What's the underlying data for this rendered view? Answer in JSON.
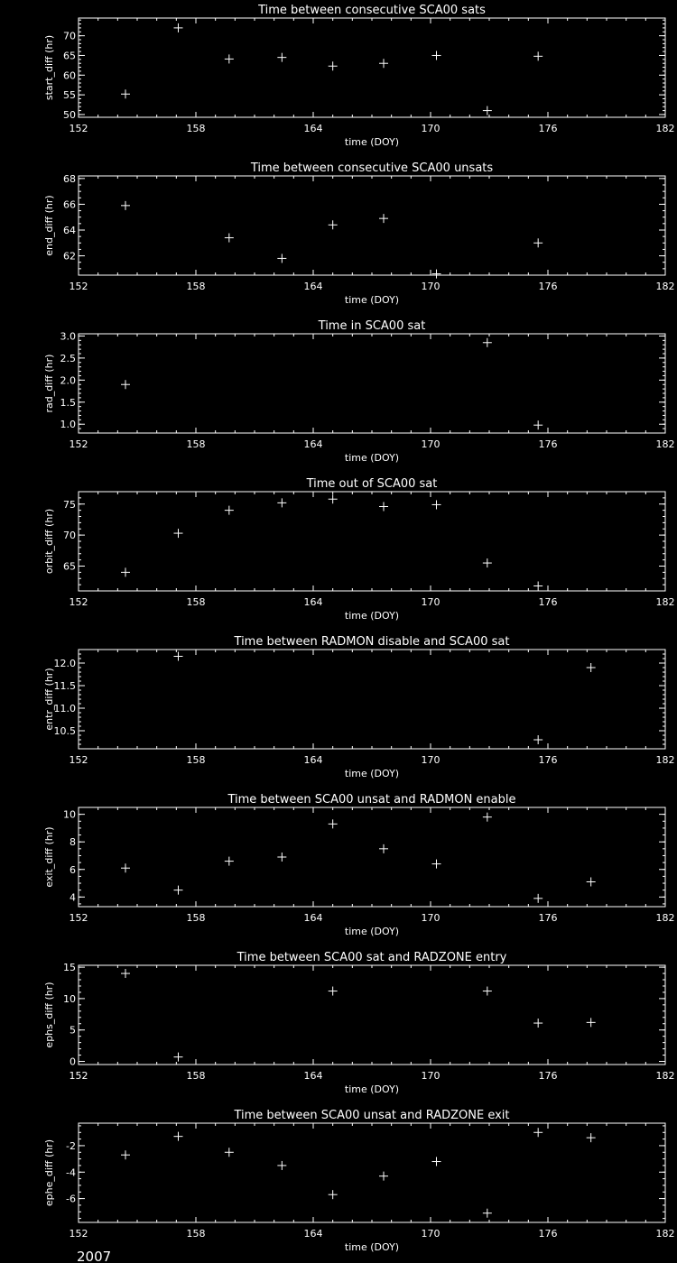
{
  "footer_year": "2007",
  "colors": {
    "background": "#000000",
    "foreground": "#ffffff"
  },
  "chart_data": [
    {
      "type": "scatter",
      "title": "Time between consecutive SCA00 sats",
      "xlabel": "time (DOY)",
      "ylabel": "start_diff (hr)",
      "xlim": [
        152,
        182
      ],
      "xticks": [
        "152",
        "158",
        "164",
        "170",
        "176",
        "182"
      ],
      "ylim": [
        49.3,
        74.5
      ],
      "yticks": [
        50,
        55,
        60,
        65,
        70
      ],
      "ystep_minor": 1,
      "points": [
        [
          154.4,
          55.2
        ],
        [
          157.1,
          72
        ],
        [
          159.7,
          64.1
        ],
        [
          162.4,
          64.5
        ],
        [
          165.0,
          62.3
        ],
        [
          167.6,
          63
        ],
        [
          170.3,
          65
        ],
        [
          172.9,
          51
        ],
        [
          175.5,
          64.8
        ]
      ]
    },
    {
      "type": "scatter",
      "title": "Time between consecutive SCA00 unsats",
      "xlabel": "time (DOY)",
      "ylabel": "end_diff (hr)",
      "xlim": [
        152,
        182
      ],
      "xticks": [
        "152",
        "158",
        "164",
        "170",
        "176",
        "182"
      ],
      "ylim": [
        60.5,
        68.2
      ],
      "yticks": [
        62,
        64,
        66,
        68
      ],
      "ystep_minor": 0.5,
      "points": [
        [
          154.4,
          65.9
        ],
        [
          159.7,
          63.4
        ],
        [
          162.4,
          61.8
        ],
        [
          165.0,
          64.4
        ],
        [
          167.6,
          64.9
        ],
        [
          170.3,
          60.6
        ],
        [
          175.5,
          63.0
        ]
      ]
    },
    {
      "type": "scatter",
      "title": "Time in SCA00 sat",
      "xlabel": "time (DOY)",
      "ylabel": "rad_diff (hr)",
      "xlim": [
        152,
        182
      ],
      "xticks": [
        "152",
        "158",
        "164",
        "170",
        "176",
        "182"
      ],
      "ylim": [
        0.8,
        3.05
      ],
      "yticks": [
        1.0,
        1.5,
        2.0,
        2.5,
        3.0
      ],
      "ystep_minor": 0.1,
      "ydecimals": 1,
      "points": [
        [
          154.4,
          1.9
        ],
        [
          172.9,
          2.85
        ],
        [
          175.5,
          0.98
        ]
      ]
    },
    {
      "type": "scatter",
      "title": "Time out of SCA00 sat",
      "xlabel": "time (DOY)",
      "ylabel": "orbit_diff (hr)",
      "xlim": [
        152,
        182
      ],
      "xticks": [
        "152",
        "158",
        "164",
        "170",
        "176",
        "182"
      ],
      "ylim": [
        61,
        77
      ],
      "yticks": [
        65,
        70,
        75
      ],
      "ystep_minor": 1,
      "points": [
        [
          154.4,
          64
        ],
        [
          157.1,
          70.3
        ],
        [
          159.7,
          74
        ],
        [
          162.4,
          75.2
        ],
        [
          165.0,
          75.8
        ],
        [
          167.6,
          74.6
        ],
        [
          170.3,
          74.9
        ],
        [
          172.9,
          65.5
        ],
        [
          175.5,
          61.8
        ]
      ]
    },
    {
      "type": "scatter",
      "title": "Time between RADMON disable and SCA00 sat",
      "xlabel": "time (DOY)",
      "ylabel": "entr_diff (hr)",
      "xlim": [
        152,
        182
      ],
      "xticks": [
        "152",
        "158",
        "164",
        "170",
        "176",
        "182"
      ],
      "ylim": [
        10.1,
        12.3
      ],
      "yticks": [
        10.5,
        11.0,
        11.5,
        12.0
      ],
      "ystep_minor": 0.1,
      "ydecimals": 1,
      "points": [
        [
          157.1,
          12.15
        ],
        [
          175.5,
          10.3
        ],
        [
          178.2,
          11.9
        ]
      ]
    },
    {
      "type": "scatter",
      "title": "Time between SCA00 unsat and RADMON enable",
      "xlabel": "time (DOY)",
      "ylabel": "exit_diff (hr)",
      "xlim": [
        152,
        182
      ],
      "xticks": [
        "152",
        "158",
        "164",
        "170",
        "176",
        "182"
      ],
      "ylim": [
        3.3,
        10.5
      ],
      "yticks": [
        4,
        6,
        8,
        10
      ],
      "ystep_minor": 0.5,
      "points": [
        [
          154.4,
          6.1
        ],
        [
          157.1,
          4.5
        ],
        [
          159.7,
          6.6
        ],
        [
          162.4,
          6.9
        ],
        [
          165.0,
          9.3
        ],
        [
          167.6,
          7.5
        ],
        [
          170.3,
          6.4
        ],
        [
          172.9,
          9.8
        ],
        [
          175.5,
          3.9
        ],
        [
          178.2,
          5.1
        ]
      ]
    },
    {
      "type": "scatter",
      "title": "Time between SCA00 sat and RADZONE entry",
      "xlabel": "time (DOY)",
      "ylabel": "ephs_diff (hr)",
      "xlim": [
        152,
        182
      ],
      "xticks": [
        "152",
        "158",
        "164",
        "170",
        "176",
        "182"
      ],
      "ylim": [
        -0.5,
        15.3
      ],
      "yticks": [
        0,
        5,
        10,
        15
      ],
      "ystep_minor": 1,
      "points": [
        [
          154.4,
          14
        ],
        [
          157.1,
          0.7
        ],
        [
          165.0,
          11.2
        ],
        [
          172.9,
          11.2
        ],
        [
          175.5,
          6.1
        ],
        [
          178.2,
          6.2
        ]
      ]
    },
    {
      "type": "scatter",
      "title": "Time between SCA00 unsat and RADZONE exit",
      "xlabel": "time (DOY)",
      "ylabel": "ephe_diff (hr)",
      "xlim": [
        152,
        182
      ],
      "xticks": [
        "152",
        "158",
        "164",
        "170",
        "176",
        "182"
      ],
      "ylim": [
        -7.8,
        -0.3
      ],
      "yticks": [
        -6,
        -4,
        -2
      ],
      "ystep_minor": 0.5,
      "points": [
        [
          154.4,
          -2.7
        ],
        [
          157.1,
          -1.3
        ],
        [
          159.7,
          -2.5
        ],
        [
          162.4,
          -3.5
        ],
        [
          165.0,
          -5.7
        ],
        [
          167.6,
          -4.3
        ],
        [
          170.3,
          -3.2
        ],
        [
          172.9,
          -7.1
        ],
        [
          175.5,
          -1.0
        ],
        [
          178.2,
          -1.4
        ]
      ]
    }
  ]
}
